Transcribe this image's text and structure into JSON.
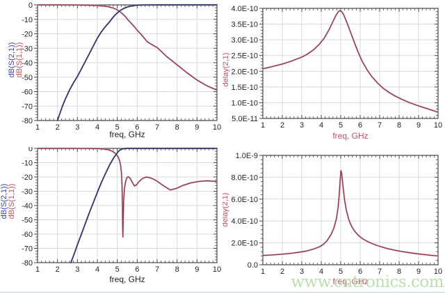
{
  "watermark": {
    "text": "www.cntronics.com",
    "color": "#b7dfaa"
  },
  "colors": {
    "grid": "#d7d8e2",
    "frame": "#45454c",
    "axis_text": "#1e1e1e",
    "bottom_divider": "#c2cedd",
    "curve_blue": "#23234f",
    "curve_blue_halo": "#9aa0c8",
    "curve_red": "#8b3546",
    "curve_red_halo": "#ddb4c2",
    "label_blue": "#3a3ec0",
    "label_red": "#c44f61"
  },
  "chart_data": [
    {
      "id": "sparams1",
      "type": "line",
      "title": "",
      "xlabel": "freq, GHz",
      "xlabel_color": "#1e1e1e",
      "ylabel_segments": [
        {
          "text": "dB(S(2,1))",
          "color": "#3a3ec0"
        },
        {
          "text": "dB(S(1,1))",
          "color": "#c44f61"
        }
      ],
      "xlim": [
        1,
        10
      ],
      "xticks": [
        1,
        2,
        3,
        4,
        5,
        6,
        7,
        8,
        9,
        10
      ],
      "xtick_labels": [
        "1",
        "2",
        "3",
        "4",
        "5",
        "6",
        "7",
        "8",
        "9",
        "10"
      ],
      "x_minor_step": 0.2,
      "ylim": [
        -80,
        0
      ],
      "ytick_values": [
        0,
        -10,
        -20,
        -30,
        -40,
        -50,
        -60,
        -70,
        -80
      ],
      "ytick_labels": [
        "0",
        "-10",
        "-20",
        "-30",
        "-40",
        "-50",
        "-60",
        "-70",
        "-80"
      ],
      "y_minor_step": 2,
      "grid": true,
      "series": [
        {
          "name": "dB(S(1,1))",
          "color": "#8b3546",
          "halo": "#ddb4c2",
          "points": [
            [
              1,
              -0.02
            ],
            [
              2,
              -0.02
            ],
            [
              3,
              -0.08
            ],
            [
              3.5,
              -0.2
            ],
            [
              4,
              -0.45
            ],
            [
              4.3,
              -0.8
            ],
            [
              4.55,
              -1.3
            ],
            [
              4.8,
              -2.2
            ],
            [
              5.0,
              -3.4
            ],
            [
              5.09,
              -4.3
            ],
            [
              5.25,
              -6
            ],
            [
              5.4,
              -8
            ],
            [
              5.55,
              -10.5
            ],
            [
              5.7,
              -12.7
            ],
            [
              5.85,
              -15
            ],
            [
              6.0,
              -17.6
            ],
            [
              6.2,
              -20.5
            ],
            [
              6.5,
              -25.5
            ],
            [
              6.75,
              -27.6
            ],
            [
              7.0,
              -29.5
            ],
            [
              7.25,
              -32.7
            ],
            [
              7.5,
              -36
            ],
            [
              7.75,
              -38.7
            ],
            [
              8.0,
              -41.5
            ],
            [
              8.25,
              -44.2
            ],
            [
              8.5,
              -47
            ],
            [
              8.75,
              -49.5
            ],
            [
              9.0,
              -52
            ],
            [
              9.25,
              -54
            ],
            [
              9.5,
              -56
            ],
            [
              9.75,
              -57.5
            ],
            [
              10,
              -59
            ]
          ]
        },
        {
          "name": "dB(S(2,1))",
          "color": "#23234f",
          "halo": "#9aa0c8",
          "points": [
            [
              2.0,
              -80
            ],
            [
              2.1,
              -76
            ],
            [
              2.25,
              -70
            ],
            [
              2.4,
              -65
            ],
            [
              2.6,
              -59
            ],
            [
              2.8,
              -54
            ],
            [
              3.0,
              -49.5
            ],
            [
              3.2,
              -44.3
            ],
            [
              3.4,
              -39
            ],
            [
              3.6,
              -33.8
            ],
            [
              3.8,
              -28.3
            ],
            [
              4.0,
              -23.1
            ],
            [
              4.2,
              -18.7
            ],
            [
              4.35,
              -16
            ],
            [
              4.5,
              -13.5
            ],
            [
              4.6,
              -12
            ],
            [
              4.75,
              -9.2
            ],
            [
              4.9,
              -6.9
            ],
            [
              5.05,
              -4.9
            ],
            [
              5.2,
              -3.4
            ],
            [
              5.35,
              -2.3
            ],
            [
              5.5,
              -1.5
            ],
            [
              5.7,
              -0.8
            ],
            [
              5.9,
              -0.35
            ],
            [
              6.1,
              -0.15
            ],
            [
              6.4,
              -0.04
            ],
            [
              7,
              0
            ],
            [
              10,
              0
            ]
          ]
        }
      ]
    },
    {
      "id": "delay1",
      "type": "line",
      "title": "",
      "xlabel": "freq, GHz",
      "xlabel_color": "#c44f61",
      "ylabel_segments": [
        {
          "text": "delay(2,1)",
          "color": "#c44f61"
        }
      ],
      "xlim": [
        1,
        10
      ],
      "xticks": [
        1,
        2,
        3,
        4,
        5,
        6,
        7,
        8,
        9,
        10
      ],
      "xtick_labels": [
        "1",
        "2",
        "3",
        "4",
        "5",
        "6",
        "7",
        "8",
        "9",
        "10"
      ],
      "x_minor_step": 0.2,
      "ylim": [
        5e-11,
        4e-10
      ],
      "ytick_values": [
        4e-10,
        3.5e-10,
        3e-10,
        2.5e-10,
        2e-10,
        1.5e-10,
        1e-10,
        5e-11
      ],
      "ytick_labels": [
        "4.0E-10",
        "3.5E-10",
        "3.0E-10",
        "2.5E-10",
        "2.0E-10",
        "1.5E-10",
        "1.0E-10",
        "5.0E-11"
      ],
      "y_minor_step": 1e-11,
      "grid": true,
      "series": [
        {
          "name": "delay(2,1)",
          "color": "#8b3546",
          "halo": "#ddb4c2",
          "points": [
            [
              1,
              2.08e-10
            ],
            [
              1.5,
              2.15e-10
            ],
            [
              2,
              2.23e-10
            ],
            [
              2.5,
              2.33e-10
            ],
            [
              3,
              2.45e-10
            ],
            [
              3.3,
              2.55e-10
            ],
            [
              3.6,
              2.68e-10
            ],
            [
              3.9,
              2.86e-10
            ],
            [
              4.15,
              3.05e-10
            ],
            [
              4.4,
              3.32e-10
            ],
            [
              4.6,
              3.58e-10
            ],
            [
              4.75,
              3.77e-10
            ],
            [
              4.87,
              3.89e-10
            ],
            [
              4.95,
              3.93e-10
            ],
            [
              5.05,
              3.9e-10
            ],
            [
              5.15,
              3.8e-10
            ],
            [
              5.3,
              3.58e-10
            ],
            [
              5.5,
              3.25e-10
            ],
            [
              5.7,
              2.92e-10
            ],
            [
              5.9,
              2.6e-10
            ],
            [
              6.1,
              2.32e-10
            ],
            [
              6.35,
              2.05e-10
            ],
            [
              6.6,
              1.83e-10
            ],
            [
              6.9,
              1.62e-10
            ],
            [
              7.2,
              1.45e-10
            ],
            [
              7.5,
              1.32e-10
            ],
            [
              7.8,
              1.21e-10
            ],
            [
              8.1,
              1.12e-10
            ],
            [
              8.5,
              1.01e-10
            ],
            [
              8.9,
              9.2e-11
            ],
            [
              9.3,
              8.4e-11
            ],
            [
              9.7,
              7.6e-11
            ],
            [
              10,
              7e-11
            ]
          ]
        }
      ]
    },
    {
      "id": "sparams2",
      "type": "line",
      "title": "",
      "xlabel": "freq, GHz",
      "xlabel_color": "#1e1e1e",
      "ylabel_segments": [
        {
          "text": "dB(S(2,1))",
          "color": "#3a3ec0"
        },
        {
          "text": "dB(S(1,1))",
          "color": "#c44f61"
        }
      ],
      "xlim": [
        1,
        10
      ],
      "xticks": [
        1,
        2,
        3,
        4,
        5,
        6,
        7,
        8,
        9,
        10
      ],
      "xtick_labels": [
        "1",
        "2",
        "3",
        "4",
        "5",
        "6",
        "7",
        "8",
        "9",
        "10"
      ],
      "x_minor_step": 0.2,
      "ylim": [
        -80,
        0
      ],
      "ytick_values": [
        0,
        -10,
        -20,
        -30,
        -40,
        -50,
        -60,
        -70,
        -80
      ],
      "ytick_labels": [
        "0",
        "-10",
        "-20",
        "-30",
        "-40",
        "-50",
        "-60",
        "-70",
        "-80"
      ],
      "y_minor_step": 2,
      "grid": true,
      "series": [
        {
          "name": "dB(S(1,1))",
          "color": "#8b3546",
          "halo": "#ddb4c2",
          "points": [
            [
              1,
              -0.02
            ],
            [
              3.5,
              -0.05
            ],
            [
              4.0,
              -0.15
            ],
            [
              4.3,
              -0.4
            ],
            [
              4.5,
              -0.8
            ],
            [
              4.65,
              -1.4
            ],
            [
              4.8,
              -2.4
            ],
            [
              4.95,
              -4
            ],
            [
              5.05,
              -6.2
            ],
            [
              5.12,
              -8.8
            ],
            [
              5.17,
              -12
            ],
            [
              5.21,
              -17
            ],
            [
              5.24,
              -26
            ],
            [
              5.26,
              -40
            ],
            [
              5.27,
              -55
            ],
            [
              5.28,
              -62
            ],
            [
              5.3,
              -48
            ],
            [
              5.32,
              -37
            ],
            [
              5.36,
              -28
            ],
            [
              5.42,
              -23.2
            ],
            [
              5.49,
              -20.3
            ],
            [
              5.57,
              -19.9
            ],
            [
              5.66,
              -21.2
            ],
            [
              5.76,
              -24
            ],
            [
              5.86,
              -26.3
            ],
            [
              5.96,
              -25.6
            ],
            [
              6.08,
              -23.4
            ],
            [
              6.25,
              -21.2
            ],
            [
              6.44,
              -20.1
            ],
            [
              6.6,
              -20.4
            ],
            [
              6.8,
              -21.4
            ],
            [
              7.0,
              -23
            ],
            [
              7.3,
              -26
            ],
            [
              7.66,
              -29.1
            ],
            [
              7.95,
              -28.1
            ],
            [
              8.3,
              -25.9
            ],
            [
              8.7,
              -24.1
            ],
            [
              9.1,
              -23.1
            ],
            [
              9.5,
              -22.7
            ],
            [
              10,
              -23.1
            ]
          ]
        },
        {
          "name": "dB(S(2,1))",
          "color": "#23234f",
          "halo": "#9aa0c8",
          "points": [
            [
              2.67,
              -80
            ],
            [
              2.85,
              -73.5
            ],
            [
              3.0,
              -67.5
            ],
            [
              3.2,
              -60
            ],
            [
              3.4,
              -52.5
            ],
            [
              3.6,
              -45
            ],
            [
              3.8,
              -37.8
            ],
            [
              4.0,
              -30.8
            ],
            [
              4.2,
              -24
            ],
            [
              4.4,
              -17.8
            ],
            [
              4.6,
              -12
            ],
            [
              4.75,
              -8.3
            ],
            [
              4.85,
              -6
            ],
            [
              4.95,
              -4.2
            ],
            [
              5.05,
              -2.2
            ],
            [
              5.15,
              -1
            ],
            [
              5.3,
              -0.2
            ],
            [
              5.5,
              0
            ],
            [
              10,
              0
            ]
          ]
        }
      ]
    },
    {
      "id": "delay2",
      "type": "line",
      "title": "",
      "xlabel": "freq, GHz",
      "xlabel_color": "#c44f61",
      "ylabel_segments": [
        {
          "text": "delay(2,1)",
          "color": "#c44f61"
        }
      ],
      "xlim": [
        1,
        10
      ],
      "xticks": [
        1,
        2,
        3,
        4,
        5,
        6,
        7,
        8,
        9,
        10
      ],
      "xtick_labels": [
        "1",
        "2",
        "3",
        "4",
        "5",
        "6",
        "7",
        "8",
        "9",
        "10"
      ],
      "x_minor_step": 0.2,
      "ylim": [
        0,
        1e-09
      ],
      "ytick_values": [
        1e-09,
        8e-10,
        6e-10,
        4e-10,
        2e-10,
        0
      ],
      "ytick_labels": [
        "1.0E-9",
        "8.0E-10",
        "6.0E-10",
        "4.0E-10",
        "2.0E-10",
        "0.0"
      ],
      "y_minor_step": 4e-11,
      "grid": true,
      "series": [
        {
          "name": "delay(2,1)",
          "color": "#8b3546",
          "halo": "#ddb4c2",
          "points": [
            [
              1,
              8.5e-11
            ],
            [
              1.5,
              9e-11
            ],
            [
              2,
              9.7e-11
            ],
            [
              2.5,
              1.06e-10
            ],
            [
              3,
              1.18e-10
            ],
            [
              3.3,
              1.28e-10
            ],
            [
              3.6,
              1.43e-10
            ],
            [
              3.9,
              1.63e-10
            ],
            [
              4.1,
              1.85e-10
            ],
            [
              4.3,
              2.2e-10
            ],
            [
              4.5,
              2.75e-10
            ],
            [
              4.65,
              3.35e-10
            ],
            [
              4.78,
              4.2e-10
            ],
            [
              4.87,
              5.3e-10
            ],
            [
              4.93,
              6.5e-10
            ],
            [
              4.98,
              7.9e-10
            ],
            [
              5.01,
              8.6e-10
            ],
            [
              5.05,
              8.35e-10
            ],
            [
              5.12,
              7.1e-10
            ],
            [
              5.2,
              5.9e-10
            ],
            [
              5.3,
              4.9e-10
            ],
            [
              5.42,
              4.1e-10
            ],
            [
              5.55,
              3.55e-10
            ],
            [
              5.7,
              3.1e-10
            ],
            [
              5.9,
              2.7e-10
            ],
            [
              6.1,
              2.4e-10
            ],
            [
              6.4,
              2.1e-10
            ],
            [
              6.7,
              1.87e-10
            ],
            [
              7.0,
              1.68e-10
            ],
            [
              7.4,
              1.48e-10
            ],
            [
              7.8,
              1.32e-10
            ],
            [
              8.2,
              1.19e-10
            ],
            [
              8.6,
              1.08e-10
            ],
            [
              9.0,
              9.9e-11
            ],
            [
              9.4,
              9.1e-11
            ],
            [
              9.7,
              8.5e-11
            ],
            [
              10,
              8e-11
            ]
          ]
        }
      ]
    }
  ]
}
